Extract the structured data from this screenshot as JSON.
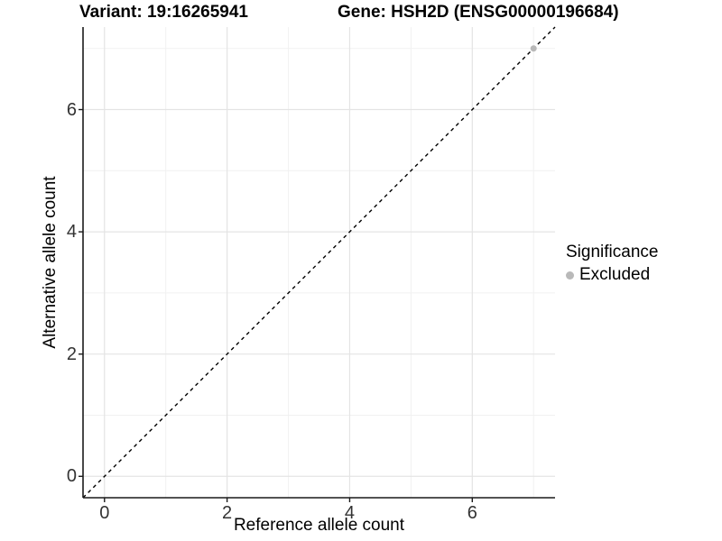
{
  "titles": {
    "left": "Variant: 19:16265941",
    "right": "Gene: HSH2D (ENSG00000196684)"
  },
  "legend": {
    "title": "Significance",
    "items": [
      {
        "label": "Excluded",
        "color": "#b9b9b9"
      }
    ]
  },
  "chart_data": {
    "type": "scatter",
    "xlabel": "Reference allele count",
    "ylabel": "Alternative allele count",
    "xlim": [
      -0.35,
      7.35
    ],
    "ylim": [
      -0.35,
      7.35
    ],
    "x_ticks": {
      "major": [
        0,
        2,
        4,
        6
      ],
      "minor": [
        1,
        3,
        5,
        7
      ]
    },
    "y_ticks": {
      "major": [
        0,
        2,
        4,
        6
      ],
      "minor": [
        1,
        3,
        5,
        7
      ]
    },
    "grid": "major+minor",
    "legend_position": "right",
    "series": [
      {
        "name": "Excluded",
        "color": "#b9b9b9",
        "points": [
          [
            7,
            7
          ]
        ]
      }
    ],
    "reference_line": {
      "type": "identity",
      "equation": "y = x",
      "style": "dashed",
      "color": "#000000"
    }
  },
  "colors": {
    "background": "#ffffff",
    "grid_major": "#e4e4e4",
    "grid_minor": "#f1f1f1",
    "axis_line": "#1a1a1a",
    "tick_mark": "#1a1a1a",
    "tick_label": "#333333"
  }
}
